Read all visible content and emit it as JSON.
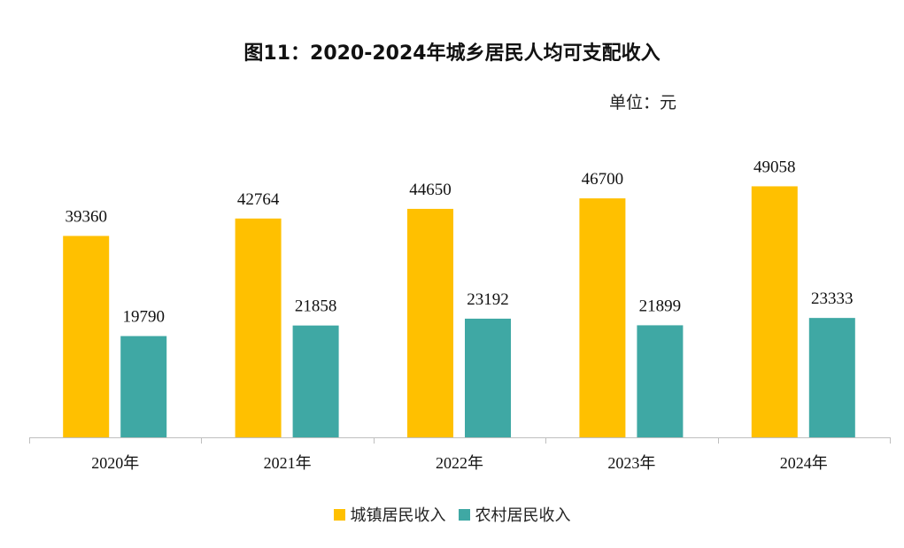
{
  "chart_data": {
    "type": "bar",
    "title": "图11：2020-2024年城乡居民人均可支配收入",
    "unit_label": "单位：元",
    "categories": [
      "2020年",
      "2021年",
      "2022年",
      "2023年",
      "2024年"
    ],
    "series": [
      {
        "name": "城镇居民收入",
        "color": "#FFC000",
        "values": [
          39360,
          42764,
          44650,
          46700,
          49058
        ]
      },
      {
        "name": "农村居民收入",
        "color": "#3FA8A4",
        "values": [
          19790,
          21858,
          23192,
          21899,
          23333
        ]
      }
    ],
    "ylim": [
      0,
      60000
    ],
    "grid": false,
    "legend_position": "bottom",
    "data_labels": true
  }
}
